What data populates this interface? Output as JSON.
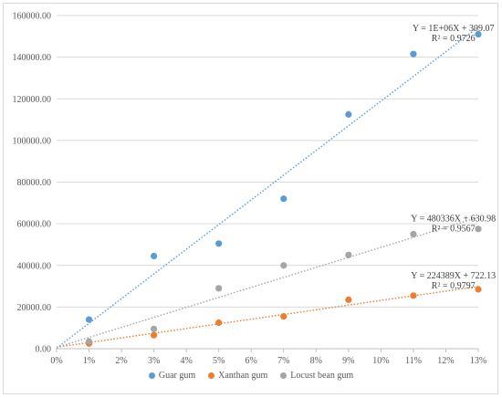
{
  "chart_data": {
    "type": "scatter",
    "title": "",
    "xlabel": "",
    "ylabel": "",
    "x": [
      0.01,
      0.03,
      0.05,
      0.07,
      0.09,
      0.11,
      0.13
    ],
    "xlim": [
      0,
      0.13
    ],
    "ylim": [
      0,
      160000
    ],
    "x_ticks": [
      "0%",
      "1%",
      "2%",
      "3%",
      "4%",
      "5%",
      "6%",
      "7%",
      "8%",
      "9%",
      "10%",
      "11%",
      "12%",
      "13%"
    ],
    "y_ticks": [
      "0.00",
      "20000.00",
      "40000.00",
      "60000.00",
      "80000.00",
      "100000.00",
      "120000.00",
      "140000.00",
      "160000.00"
    ],
    "grid": "horizontal",
    "legend_position": "bottom",
    "series": [
      {
        "name": "Guar gum",
        "color": "#5b9bd5",
        "values": [
          14000,
          44500,
          50500,
          72000,
          112500,
          141500,
          151000
        ],
        "trendline": {
          "slope": 1186000,
          "intercept": 309.07,
          "equation": "Y = 1E+06X + 309.07",
          "r2": "R² = 0.9726"
        }
      },
      {
        "name": "Xanthan gum",
        "color": "#ed7d31",
        "values": [
          2500,
          6500,
          12500,
          15500,
          23500,
          25500,
          28500
        ],
        "trendline": {
          "slope": 224389,
          "intercept": 722.13,
          "equation": "Y = 224389X + 722.13",
          "r2": "R² = 0.9797"
        }
      },
      {
        "name": "Locust bean gum",
        "color": "#a5a5a5",
        "values": [
          3500,
          9500,
          29000,
          40000,
          45000,
          55000,
          57500
        ],
        "trendline": {
          "slope": 480336,
          "intercept": 630.98,
          "equation": "Y = 480336X + 630.98",
          "r2": "R² = 0.9567"
        }
      }
    ]
  }
}
